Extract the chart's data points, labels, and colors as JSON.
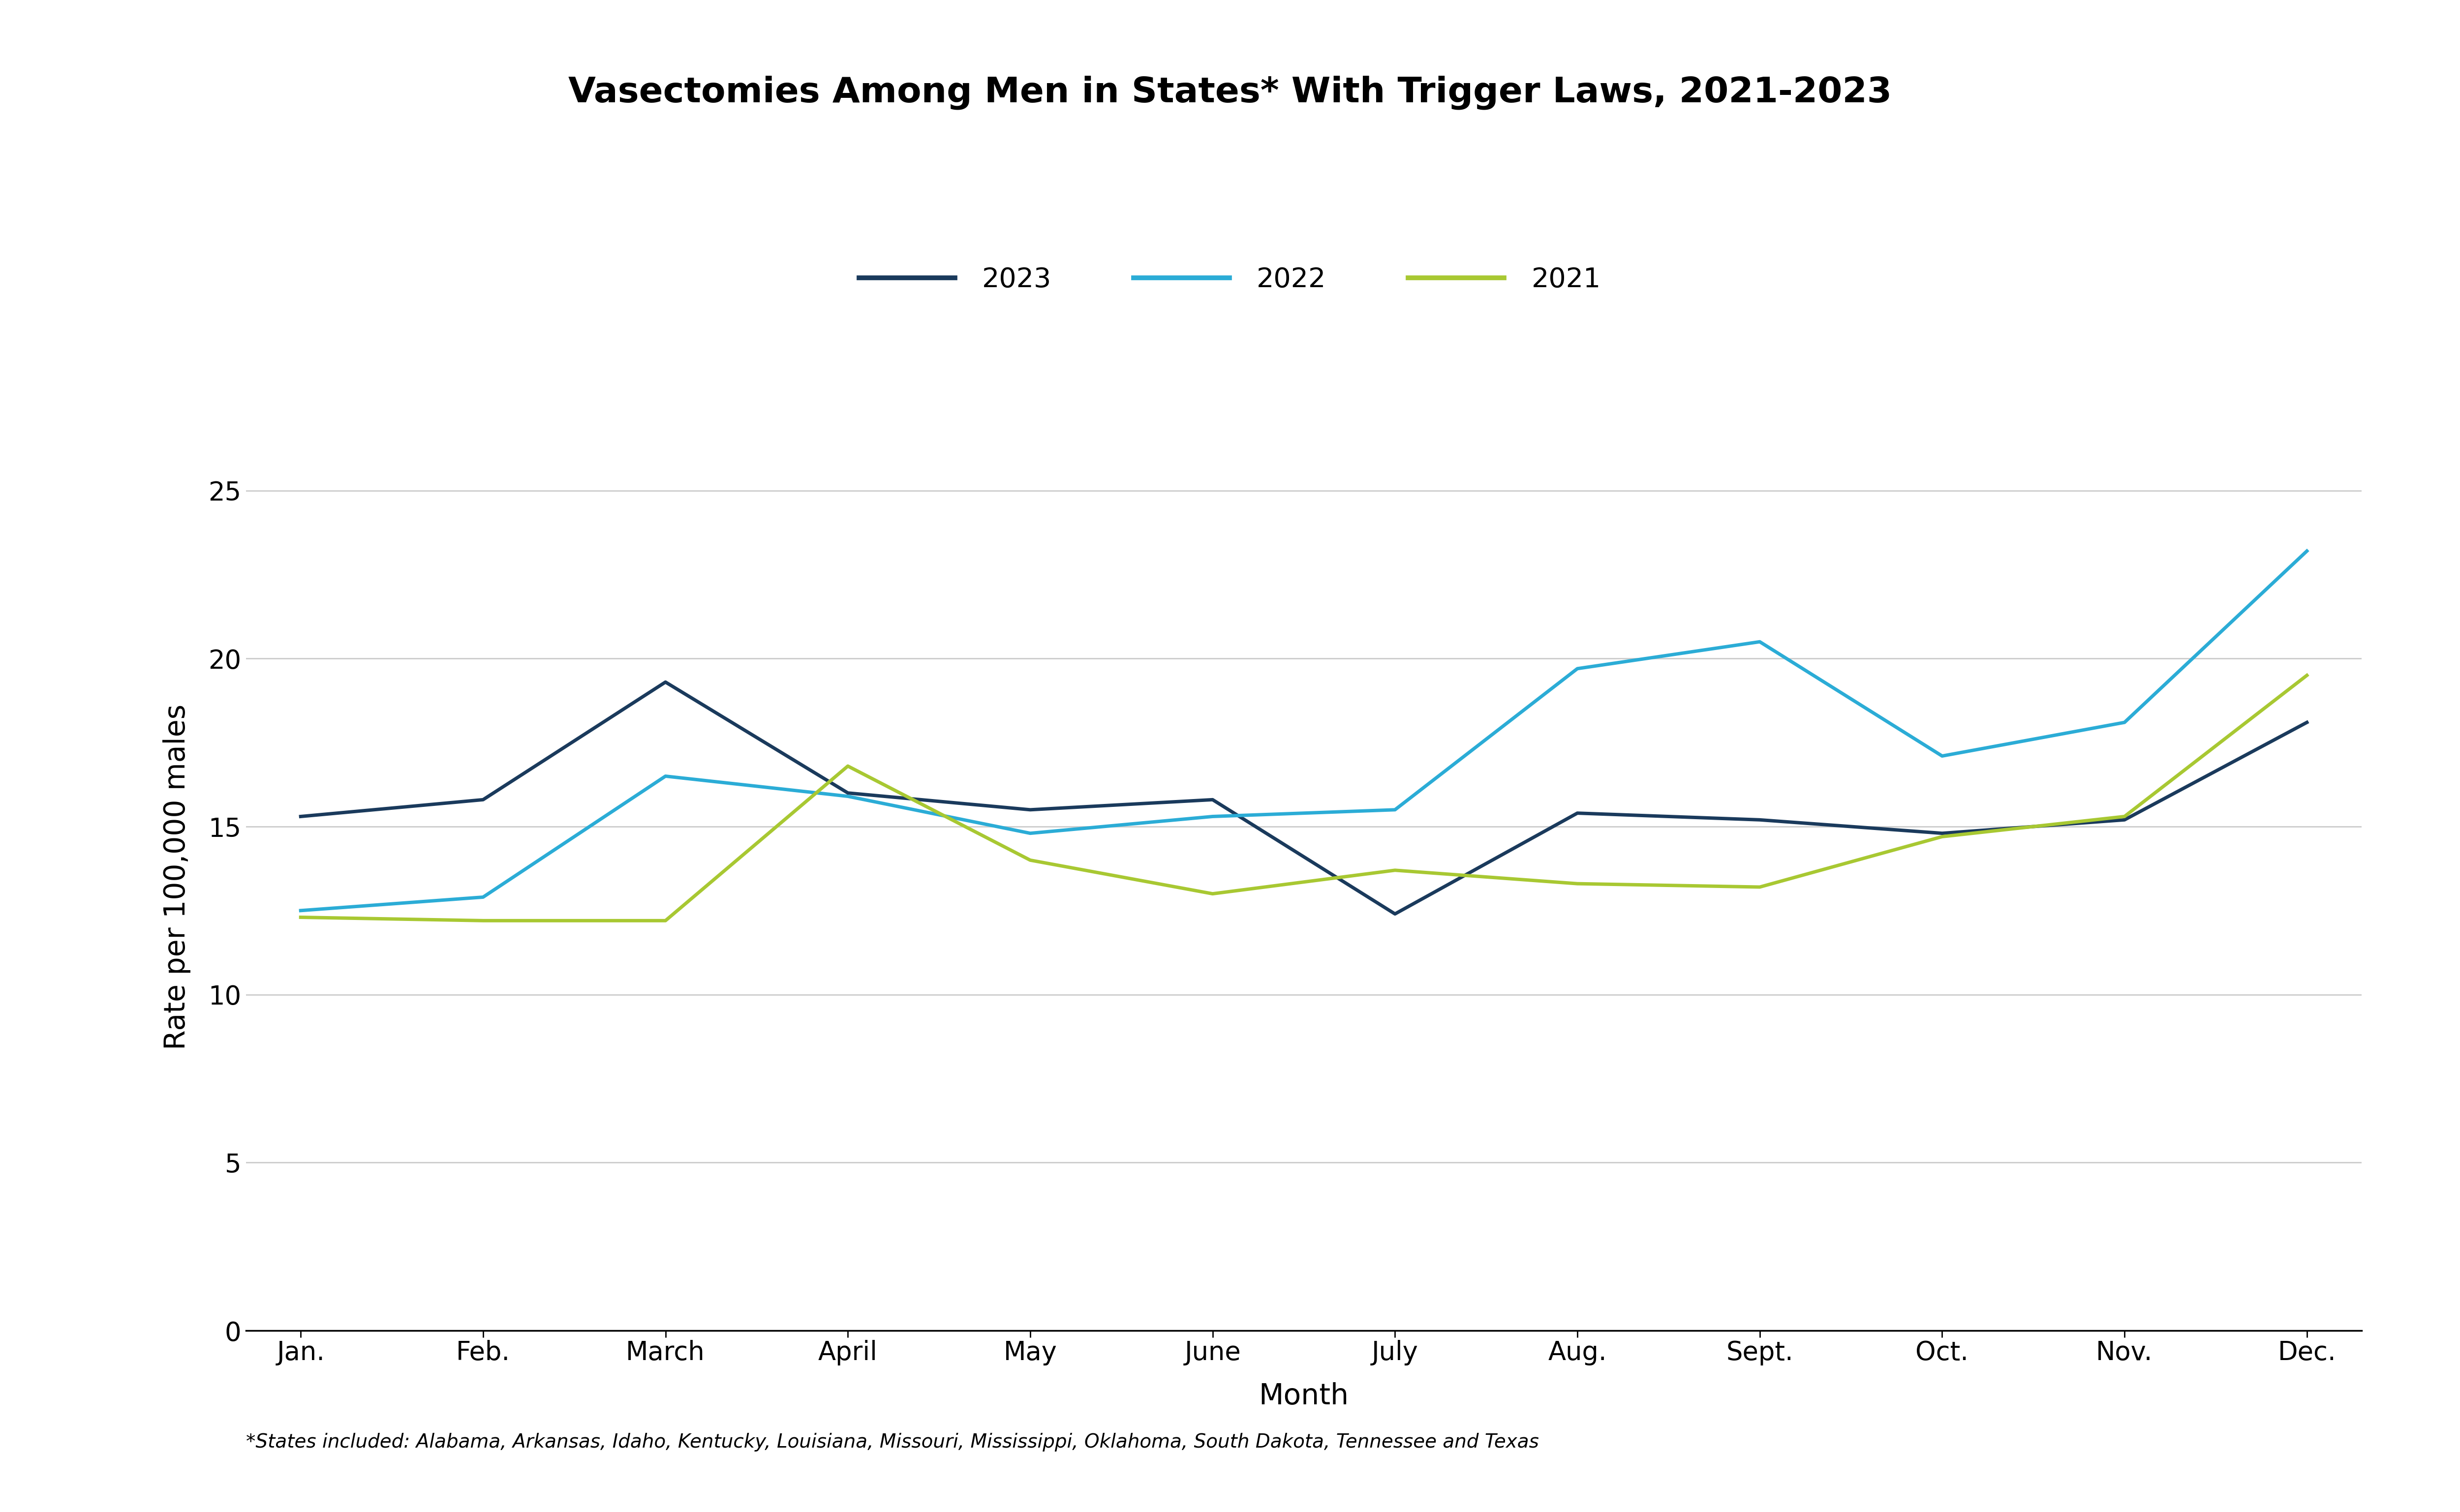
{
  "title": "Vasectomies Among Men in States* With Trigger Laws, 2021-2023",
  "xlabel": "Month",
  "ylabel": "Rate per 100,000 males",
  "footnote": "*States included: Alabama, Arkansas, Idaho, Kentucky, Louisiana, Missouri, Mississippi, Oklahoma, South Dakota, Tennessee and Texas",
  "months": [
    "Jan.",
    "Feb.",
    "March",
    "April",
    "May",
    "June",
    "July",
    "Aug.",
    "Sept.",
    "Oct.",
    "Nov.",
    "Dec."
  ],
  "series_2023": [
    15.3,
    15.8,
    19.3,
    16.0,
    15.5,
    15.8,
    12.4,
    15.4,
    15.2,
    14.8,
    15.2,
    18.1
  ],
  "series_2022": [
    12.5,
    12.9,
    16.5,
    15.9,
    14.8,
    15.3,
    15.5,
    19.7,
    20.5,
    17.1,
    18.1,
    23.2
  ],
  "series_2021": [
    12.3,
    12.2,
    12.2,
    16.8,
    14.0,
    13.0,
    13.7,
    13.3,
    13.2,
    14.7,
    15.3,
    19.5
  ],
  "color_2023": "#1a3a5c",
  "color_2022": "#2bacd6",
  "color_2021": "#a8c832",
  "background_color": "#ffffff",
  "ylim": [
    0,
    27
  ],
  "yticks": [
    0,
    5,
    10,
    15,
    20,
    25
  ],
  "line_width": 5,
  "title_fontsize": 52,
  "legend_fontsize": 40,
  "axis_label_fontsize": 42,
  "tick_fontsize": 38,
  "footnote_fontsize": 28,
  "grid_color": "#cccccc",
  "legend_entries": [
    "2023",
    "2022",
    "2021"
  ]
}
